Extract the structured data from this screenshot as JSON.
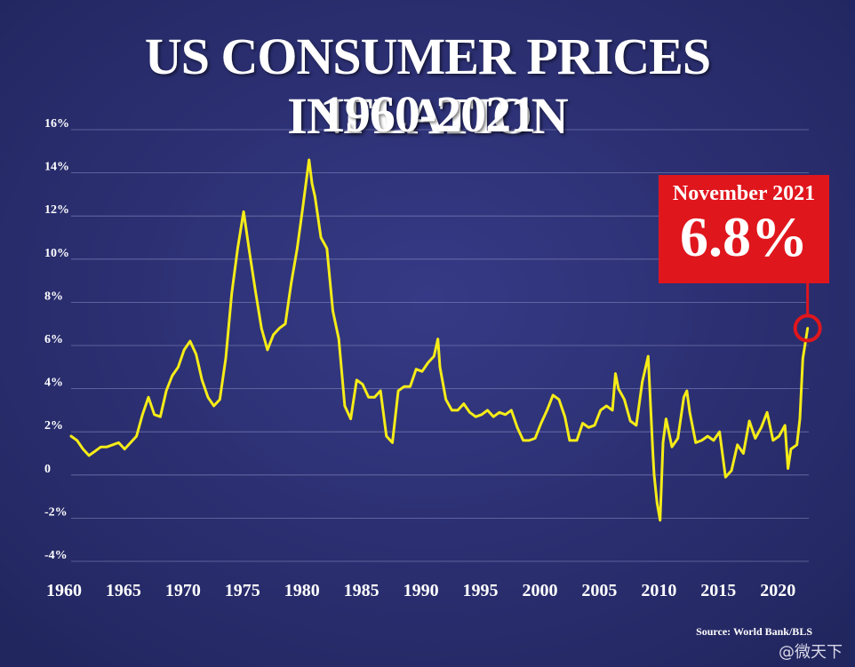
{
  "title": "US CONSUMER PRICES INFLATION",
  "subtitle": "1960-2021",
  "callout": {
    "date": "November 2021",
    "value": "6.8%"
  },
  "source": "Source: World Bank/BLS",
  "watermark": "@微天下",
  "colors": {
    "background": "#2b2f74",
    "line": "#f5ec18",
    "callout": "#e0161d",
    "grid": "#8a8fc4"
  },
  "chart_data": {
    "type": "line",
    "title": "US CONSUMER PRICES INFLATION",
    "subtitle": "1960-2021",
    "xlabel": "",
    "ylabel": "",
    "xlim": [
      1960,
      2022
    ],
    "ylim": [
      -4,
      16
    ],
    "grid": true,
    "x_ticks": [
      1960,
      1965,
      1970,
      1975,
      1980,
      1985,
      1990,
      1995,
      2000,
      2005,
      2010,
      2015,
      2020
    ],
    "y_ticks": [
      -4,
      -2,
      0,
      2,
      4,
      6,
      8,
      10,
      12,
      14,
      16
    ],
    "y_tick_labels": [
      "-4%",
      "-2%",
      "0",
      "2%",
      "4%",
      "6%",
      "8%",
      "10%",
      "12%",
      "14%",
      "16%"
    ],
    "annotation": {
      "label": "November 2021",
      "value_label": "6.8%",
      "x": 2021.9,
      "y": 6.8
    },
    "series": [
      {
        "x": [
          1960.0,
          1960.5,
          1961.0,
          1961.5,
          1962.0,
          1962.5,
          1963.0,
          1963.5,
          1964.0,
          1964.5,
          1965.0,
          1965.5,
          1966.0,
          1966.5,
          1967.0,
          1967.5,
          1968.0,
          1968.5,
          1969.0,
          1969.5,
          1970.0,
          1970.5,
          1971.0,
          1971.5,
          1972.0,
          1972.5,
          1973.0,
          1973.5,
          1974.0,
          1974.5,
          1975.0,
          1975.5,
          1976.0,
          1976.5,
          1977.0,
          1977.5,
          1978.0,
          1978.5,
          1979.0,
          1979.5,
          1980.0,
          1980.25,
          1980.5,
          1981.0,
          1981.5,
          1982.0,
          1982.5,
          1983.0,
          1983.5,
          1984.0,
          1984.5,
          1985.0,
          1985.5,
          1986.0,
          1986.5,
          1987.0,
          1987.5,
          1988.0,
          1988.5,
          1989.0,
          1989.5,
          1990.0,
          1990.5,
          1990.83,
          1991.0,
          1991.5,
          1992.0,
          1992.5,
          1993.0,
          1993.5,
          1994.0,
          1994.5,
          1995.0,
          1995.5,
          1996.0,
          1996.5,
          1997.0,
          1997.5,
          1998.0,
          1998.5,
          1999.0,
          1999.5,
          2000.0,
          2000.5,
          2001.0,
          2001.5,
          2001.9,
          2002.5,
          2003.0,
          2003.5,
          2004.0,
          2004.5,
          2005.0,
          2005.5,
          2005.75,
          2006.0,
          2006.5,
          2007.0,
          2007.5,
          2008.0,
          2008.5,
          2008.9,
          2009.0,
          2009.25,
          2009.5,
          2009.75,
          2010.0,
          2010.5,
          2011.0,
          2011.5,
          2011.75,
          2012.0,
          2012.5,
          2013.0,
          2013.5,
          2014.0,
          2014.5,
          2015.0,
          2015.5,
          2016.0,
          2016.5,
          2017.0,
          2017.5,
          2018.0,
          2018.5,
          2019.0,
          2019.5,
          2020.0,
          2020.25,
          2020.5,
          2021.0,
          2021.25,
          2021.5,
          2021.9
        ],
        "y": [
          1.8,
          1.6,
          1.2,
          0.9,
          1.1,
          1.3,
          1.3,
          1.4,
          1.5,
          1.2,
          1.5,
          1.8,
          2.8,
          3.6,
          2.8,
          2.7,
          3.9,
          4.6,
          5.0,
          5.8,
          6.2,
          5.6,
          4.4,
          3.6,
          3.2,
          3.5,
          5.4,
          8.4,
          10.5,
          12.2,
          10.3,
          8.5,
          6.8,
          5.8,
          6.5,
          6.8,
          7.0,
          8.9,
          10.5,
          12.5,
          14.6,
          13.5,
          12.9,
          11.0,
          10.5,
          7.6,
          6.3,
          3.2,
          2.6,
          4.4,
          4.2,
          3.6,
          3.6,
          3.9,
          1.8,
          1.5,
          3.9,
          4.1,
          4.1,
          4.9,
          4.8,
          5.2,
          5.5,
          6.3,
          5.0,
          3.5,
          3.0,
          3.0,
          3.3,
          2.9,
          2.7,
          2.8,
          3.0,
          2.7,
          2.9,
          2.8,
          3.0,
          2.2,
          1.6,
          1.6,
          1.7,
          2.4,
          3.0,
          3.7,
          3.5,
          2.7,
          1.6,
          1.6,
          2.4,
          2.2,
          2.3,
          3.0,
          3.2,
          3.0,
          4.7,
          4.0,
          3.5,
          2.5,
          2.3,
          4.3,
          5.5,
          1.0,
          0.0,
          -1.3,
          -2.1,
          1.5,
          2.6,
          1.3,
          1.7,
          3.6,
          3.9,
          2.9,
          1.5,
          1.6,
          1.8,
          1.6,
          2.0,
          -0.1,
          0.2,
          1.4,
          1.0,
          2.5,
          1.7,
          2.2,
          2.9,
          1.6,
          1.8,
          2.3,
          0.3,
          1.2,
          1.4,
          2.6,
          5.4,
          6.8
        ]
      }
    ]
  }
}
